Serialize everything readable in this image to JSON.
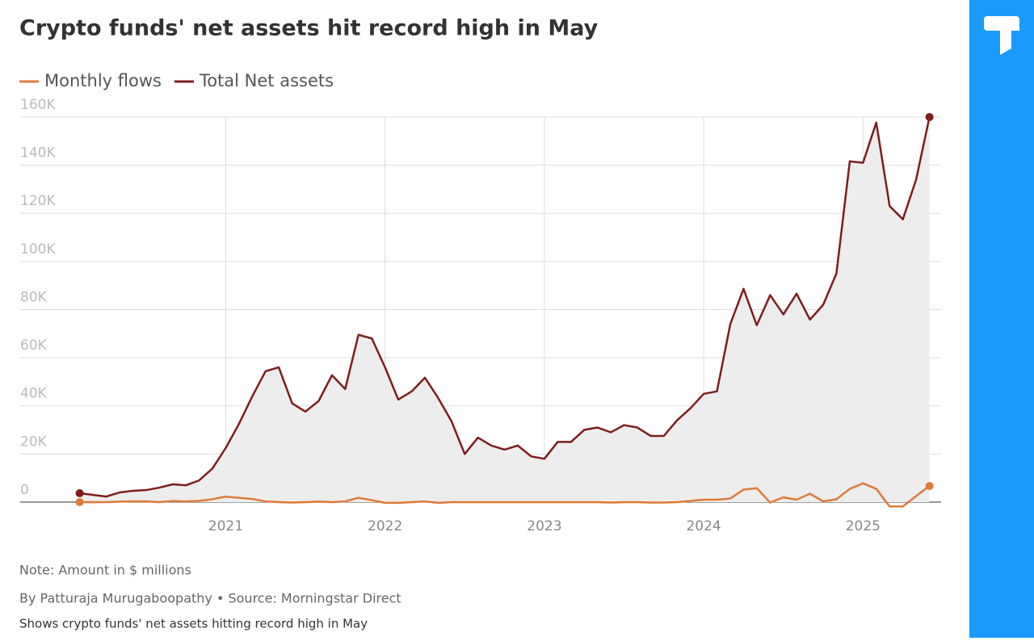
{
  "chart_data": {
    "type": "line",
    "title": "Crypto funds' net assets hit record high in May",
    "notes": [
      "Note: Amount in $ millions",
      "By Patturaja Murugaboopathy  • Source: Morningstar Direct",
      "Shows crypto funds' net assets hitting record high in May"
    ],
    "x": [
      2020.083,
      2020.167,
      2020.25,
      2020.333,
      2020.417,
      2020.5,
      2020.583,
      2020.667,
      2020.75,
      2020.833,
      2020.917,
      2021,
      2021.083,
      2021.167,
      2021.25,
      2021.333,
      2021.417,
      2021.5,
      2021.583,
      2021.667,
      2021.75,
      2021.833,
      2021.917,
      2022,
      2022.083,
      2022.167,
      2022.25,
      2022.333,
      2022.417,
      2022.5,
      2022.583,
      2022.667,
      2022.75,
      2022.833,
      2022.917,
      2023,
      2023.083,
      2023.167,
      2023.25,
      2023.333,
      2023.417,
      2023.5,
      2023.583,
      2023.667,
      2023.75,
      2023.833,
      2023.917,
      2024,
      2024.083,
      2024.167,
      2024.25,
      2024.333,
      2024.417,
      2024.5,
      2024.583,
      2024.667,
      2024.75,
      2024.833,
      2024.917,
      2025,
      2025.083,
      2025.167,
      2025.25,
      2025.333,
      2025.417
    ],
    "series": [
      {
        "name": "Monthly flows",
        "color": "#e0793a",
        "values": [
          0,
          0,
          0,
          200,
          300,
          300,
          0,
          500,
          300,
          500,
          1200,
          2300,
          1800,
          1300,
          300,
          0,
          -200,
          0,
          200,
          0,
          300,
          1800,
          800,
          -300,
          -300,
          0,
          300,
          -300,
          0,
          0,
          0,
          0,
          0,
          0,
          0,
          0,
          0,
          0,
          0,
          0,
          -200,
          0,
          0,
          -200,
          -200,
          0,
          500,
          1000,
          1000,
          1500,
          5200,
          5800,
          -200,
          2000,
          1000,
          3500,
          300,
          1200,
          5500,
          7800,
          5500,
          -1800,
          -1800,
          2500,
          6700
        ]
      },
      {
        "name": "Total Net assets",
        "color": "#7f1d1d",
        "values": [
          3700,
          3000,
          2300,
          4000,
          4700,
          5000,
          6000,
          7400,
          7000,
          9000,
          14000,
          22500,
          32500,
          44000,
          54400,
          56000,
          41000,
          37600,
          42000,
          52700,
          47000,
          69500,
          68000,
          56000,
          42600,
          46000,
          51700,
          43300,
          33600,
          20000,
          26800,
          23500,
          21800,
          23500,
          19000,
          18000,
          25000,
          25000,
          30000,
          31000,
          29000,
          32000,
          31000,
          27500,
          27500,
          34000,
          39000,
          45000,
          46000,
          74000,
          88600,
          73500,
          86000,
          78000,
          86600,
          75800,
          82000,
          95000,
          141600,
          141000,
          157700,
          123000,
          117500,
          134000,
          160000
        ]
      }
    ],
    "xlim": [
      2019.71,
      2025.49
    ],
    "xticks": [
      2021,
      2022,
      2023,
      2024,
      2025
    ],
    "ylim": [
      -3000,
      162000
    ],
    "yticks": [
      0,
      {
        "value": 20000,
        "label": "20K"
      },
      {
        "value": 40000,
        "label": "40K"
      },
      {
        "value": 60000,
        "label": "60K"
      },
      {
        "value": 80000,
        "label": "80K"
      },
      {
        "value": 100000,
        "label": "100K"
      },
      {
        "value": 120000,
        "label": "120K"
      },
      {
        "value": 140000,
        "label": "140K"
      },
      {
        "value": 160000,
        "label": "160K"
      }
    ],
    "grid": true,
    "area_color": "#ededed"
  }
}
